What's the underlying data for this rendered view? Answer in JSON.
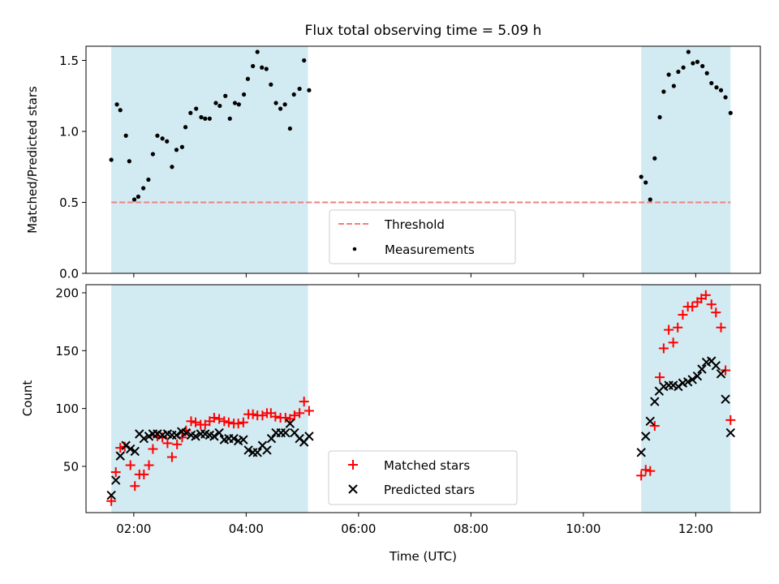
{
  "chart_data": [
    {
      "type": "scatter",
      "title": "Flux total observing time = 5.09 h",
      "xlabel": "",
      "ylabel": "Matched/Predicted stars",
      "xlim_hours": [
        1.15,
        13.15
      ],
      "ylim": [
        0,
        1.6
      ],
      "yticks": [
        0.0,
        0.5,
        1.0,
        1.5
      ],
      "ytick_labels": [
        "0.0",
        "0.5",
        "1.0",
        "1.5"
      ],
      "grid": false,
      "legend_placement": "lower center",
      "observing_windows_hours": [
        [
          1.6,
          5.1
        ],
        [
          11.03,
          12.62
        ]
      ],
      "threshold": {
        "name": "Threshold",
        "value": 0.5,
        "color": "#f08080",
        "x_range_hours": [
          1.6,
          12.62
        ]
      },
      "series": [
        {
          "name": "Measurements",
          "color": "#000000",
          "points": [
            [
              1.6,
              0.8
            ],
            [
              1.7,
              1.19
            ],
            [
              1.76,
              1.15
            ],
            [
              1.86,
              0.97
            ],
            [
              1.92,
              0.79
            ],
            [
              2.01,
              0.52
            ],
            [
              2.08,
              0.54
            ],
            [
              2.17,
              0.6
            ],
            [
              2.26,
              0.66
            ],
            [
              2.34,
              0.84
            ],
            [
              2.42,
              0.97
            ],
            [
              2.51,
              0.95
            ],
            [
              2.59,
              0.93
            ],
            [
              2.68,
              0.75
            ],
            [
              2.76,
              0.87
            ],
            [
              2.86,
              0.89
            ],
            [
              2.92,
              1.03
            ],
            [
              3.01,
              1.13
            ],
            [
              3.11,
              1.16
            ],
            [
              3.2,
              1.1
            ],
            [
              3.27,
              1.09
            ],
            [
              3.35,
              1.09
            ],
            [
              3.46,
              1.2
            ],
            [
              3.53,
              1.18
            ],
            [
              3.63,
              1.25
            ],
            [
              3.71,
              1.09
            ],
            [
              3.8,
              1.2
            ],
            [
              3.87,
              1.19
            ],
            [
              3.96,
              1.26
            ],
            [
              4.03,
              1.37
            ],
            [
              4.12,
              1.46
            ],
            [
              4.2,
              1.56
            ],
            [
              4.28,
              1.45
            ],
            [
              4.36,
              1.44
            ],
            [
              4.44,
              1.33
            ],
            [
              4.53,
              1.2
            ],
            [
              4.61,
              1.16
            ],
            [
              4.69,
              1.19
            ],
            [
              4.78,
              1.02
            ],
            [
              4.85,
              1.26
            ],
            [
              4.95,
              1.3
            ],
            [
              5.03,
              1.5
            ],
            [
              5.12,
              1.29
            ],
            [
              11.03,
              0.68
            ],
            [
              11.11,
              0.64
            ],
            [
              11.19,
              0.52
            ],
            [
              11.27,
              0.81
            ],
            [
              11.36,
              1.1
            ],
            [
              11.43,
              1.28
            ],
            [
              11.52,
              1.4
            ],
            [
              11.61,
              1.32
            ],
            [
              11.69,
              1.42
            ],
            [
              11.78,
              1.45
            ],
            [
              11.87,
              1.56
            ],
            [
              11.95,
              1.48
            ],
            [
              12.03,
              1.49
            ],
            [
              12.12,
              1.46
            ],
            [
              12.2,
              1.41
            ],
            [
              12.28,
              1.34
            ],
            [
              12.37,
              1.31
            ],
            [
              12.45,
              1.29
            ],
            [
              12.53,
              1.24
            ],
            [
              12.62,
              1.13
            ]
          ]
        }
      ]
    },
    {
      "type": "scatter",
      "title": "",
      "xlabel": "Time (UTC)",
      "ylabel": "Count",
      "xlim_hours": [
        1.15,
        13.15
      ],
      "ylim": [
        10,
        207
      ],
      "yticks": [
        50,
        100,
        150,
        200
      ],
      "ytick_labels": [
        "50",
        "100",
        "150",
        "200"
      ],
      "xticks_hours": [
        2,
        4,
        6,
        8,
        10,
        12
      ],
      "xtick_labels": [
        "02:00",
        "04:00",
        "06:00",
        "08:00",
        "10:00",
        "12:00"
      ],
      "grid": false,
      "legend_placement": "lower center",
      "observing_windows_hours": [
        [
          1.6,
          5.1
        ],
        [
          11.03,
          12.62
        ]
      ],
      "series": [
        {
          "name": "Matched stars",
          "marker": "plus",
          "color": "#ff0000",
          "points": [
            [
              1.6,
              20
            ],
            [
              1.68,
              45
            ],
            [
              1.76,
              66
            ],
            [
              1.84,
              67
            ],
            [
              1.94,
              51
            ],
            [
              2.02,
              33
            ],
            [
              2.1,
              43
            ],
            [
              2.18,
              43
            ],
            [
              2.27,
              51
            ],
            [
              2.34,
              65
            ],
            [
              2.42,
              76
            ],
            [
              2.51,
              75
            ],
            [
              2.6,
              70
            ],
            [
              2.68,
              58
            ],
            [
              2.77,
              69
            ],
            [
              2.86,
              75
            ],
            [
              2.93,
              81
            ],
            [
              3.02,
              89
            ],
            [
              3.1,
              88
            ],
            [
              3.19,
              86
            ],
            [
              3.27,
              86
            ],
            [
              3.35,
              89
            ],
            [
              3.43,
              92
            ],
            [
              3.52,
              91
            ],
            [
              3.61,
              89
            ],
            [
              3.69,
              88
            ],
            [
              3.78,
              87
            ],
            [
              3.86,
              87
            ],
            [
              3.95,
              88
            ],
            [
              4.04,
              95
            ],
            [
              4.12,
              95
            ],
            [
              4.2,
              94
            ],
            [
              4.29,
              94
            ],
            [
              4.37,
              96
            ],
            [
              4.44,
              96
            ],
            [
              4.52,
              93
            ],
            [
              4.61,
              92
            ],
            [
              4.7,
              92
            ],
            [
              4.78,
              91
            ],
            [
              4.86,
              94
            ],
            [
              4.95,
              96
            ],
            [
              5.03,
              106
            ],
            [
              5.12,
              98
            ],
            [
              11.03,
              42
            ],
            [
              11.11,
              47
            ],
            [
              11.19,
              46
            ],
            [
              11.27,
              85
            ],
            [
              11.36,
              127
            ],
            [
              11.43,
              152
            ],
            [
              11.52,
              168
            ],
            [
              11.6,
              157
            ],
            [
              11.68,
              170
            ],
            [
              11.77,
              181
            ],
            [
              11.86,
              188
            ],
            [
              11.94,
              188
            ],
            [
              12.03,
              192
            ],
            [
              12.1,
              195
            ],
            [
              12.18,
              198
            ],
            [
              12.28,
              190
            ],
            [
              12.36,
              183
            ],
            [
              12.45,
              170
            ],
            [
              12.53,
              133
            ],
            [
              12.62,
              90
            ]
          ]
        },
        {
          "name": "Predicted stars",
          "marker": "x",
          "color": "#000000",
          "points": [
            [
              1.6,
              25
            ],
            [
              1.68,
              38
            ],
            [
              1.76,
              59
            ],
            [
              1.86,
              68
            ],
            [
              1.94,
              65
            ],
            [
              2.02,
              63
            ],
            [
              2.1,
              78
            ],
            [
              2.18,
              74
            ],
            [
              2.27,
              76
            ],
            [
              2.34,
              78
            ],
            [
              2.42,
              78
            ],
            [
              2.51,
              77
            ],
            [
              2.6,
              78
            ],
            [
              2.68,
              77
            ],
            [
              2.76,
              77
            ],
            [
              2.85,
              80
            ],
            [
              2.93,
              79
            ],
            [
              3.02,
              77
            ],
            [
              3.1,
              76
            ],
            [
              3.19,
              78
            ],
            [
              3.27,
              78
            ],
            [
              3.35,
              77
            ],
            [
              3.43,
              76
            ],
            [
              3.52,
              79
            ],
            [
              3.61,
              73
            ],
            [
              3.69,
              74
            ],
            [
              3.78,
              74
            ],
            [
              3.86,
              72
            ],
            [
              3.95,
              73
            ],
            [
              4.04,
              64
            ],
            [
              4.12,
              62
            ],
            [
              4.2,
              62
            ],
            [
              4.29,
              68
            ],
            [
              4.37,
              64
            ],
            [
              4.45,
              74
            ],
            [
              4.53,
              79
            ],
            [
              4.62,
              79
            ],
            [
              4.7,
              79
            ],
            [
              4.78,
              87
            ],
            [
              4.86,
              79
            ],
            [
              4.95,
              74
            ],
            [
              5.03,
              71
            ],
            [
              5.12,
              76
            ],
            [
              11.03,
              62
            ],
            [
              11.11,
              76
            ],
            [
              11.19,
              89
            ],
            [
              11.27,
              106
            ],
            [
              11.35,
              115
            ],
            [
              11.43,
              119
            ],
            [
              11.52,
              120
            ],
            [
              11.6,
              120
            ],
            [
              11.69,
              119
            ],
            [
              11.77,
              122
            ],
            [
              11.86,
              123
            ],
            [
              11.94,
              125
            ],
            [
              12.03,
              128
            ],
            [
              12.11,
              134
            ],
            [
              12.19,
              140
            ],
            [
              12.28,
              141
            ],
            [
              12.36,
              137
            ],
            [
              12.45,
              130
            ],
            [
              12.53,
              108
            ],
            [
              12.62,
              79
            ]
          ]
        }
      ]
    }
  ],
  "colors": {
    "observing_window": "#add8e6",
    "threshold_line": "#f08080",
    "matched": "#ff0000",
    "predicted": "#000000"
  }
}
